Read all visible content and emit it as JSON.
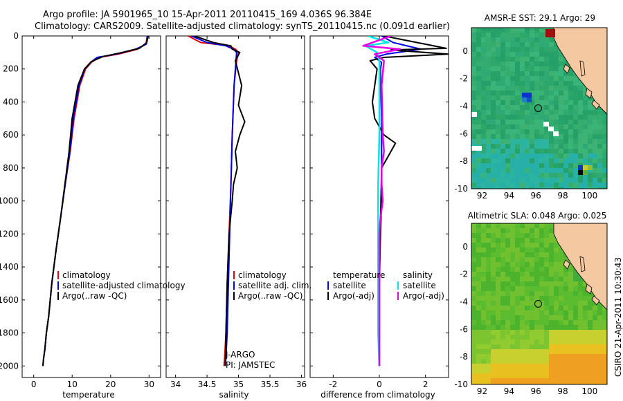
{
  "header": {
    "line1": "Argo profile: JA 5901965_10 15-Apr-2011 20110415_169 4.036S 96.384E",
    "line2": "Climatology: CARS2009. Satellite-adjusted climatology: synTS_20110415.nc (0.091d earlier)"
  },
  "side_label": "CSIRO 21-Apr-2011 10:30:43",
  "colors": {
    "red": "#e60000",
    "blue": "#0000e6",
    "black": "#000000",
    "cyan": "#00e6e6",
    "magenta": "#e600e6",
    "land": "#f4c8a0"
  },
  "chart_data": [
    {
      "type": "line",
      "id": "temperature",
      "xlabel": "temperature",
      "xlim": [
        -3,
        33
      ],
      "ylim": [
        2070,
        0
      ],
      "xticks": [
        "0",
        "10",
        "20",
        "30"
      ],
      "xtick_values": [
        0,
        10,
        20,
        30
      ],
      "yticks": [
        "0",
        "200",
        "400",
        "600",
        "800",
        "1000",
        "1200",
        "1400",
        "1600",
        "1800",
        "2000"
      ],
      "ytick_values": [
        0,
        200,
        400,
        600,
        800,
        1000,
        1200,
        1400,
        1600,
        1800,
        2000
      ],
      "legend": [
        "climatology",
        "satellite-adjusted climatology",
        "Argo(..raw -QC)"
      ],
      "series": [
        {
          "name": "climatology",
          "color": "red",
          "x": [
            29.5,
            29.2,
            27,
            22,
            17,
            15,
            13.5,
            12,
            10.5,
            9.5,
            8.2,
            7,
            5.8,
            4.7,
            3.9,
            3.3,
            2.9,
            2.6,
            2.4
          ],
          "y": [
            0,
            50,
            80,
            110,
            130,
            160,
            200,
            300,
            500,
            700,
            900,
            1100,
            1300,
            1500,
            1700,
            1800,
            1900,
            1950,
            2000
          ]
        },
        {
          "name": "satellite",
          "color": "blue",
          "x": [
            29.6,
            29.3,
            26.5,
            21.5,
            16.5,
            14.8,
            13.3,
            11.8,
            10.3,
            9.4,
            8.2,
            7,
            5.8,
            4.7,
            3.9,
            3.3,
            2.9,
            2.6,
            2.4
          ],
          "y": [
            0,
            50,
            80,
            110,
            130,
            160,
            200,
            300,
            500,
            700,
            900,
            1100,
            1300,
            1500,
            1700,
            1800,
            1900,
            1950,
            2000
          ]
        },
        {
          "name": "argo",
          "color": "black",
          "x": [
            29.8,
            29.4,
            27.5,
            23,
            18,
            15,
            13.2,
            11.5,
            10,
            9.2,
            8.1,
            7,
            5.8,
            4.7,
            3.9,
            3.3,
            2.9,
            2.6,
            2.4
          ],
          "y": [
            0,
            40,
            75,
            100,
            125,
            155,
            200,
            300,
            500,
            700,
            900,
            1100,
            1300,
            1500,
            1700,
            1800,
            1900,
            1950,
            2000
          ]
        }
      ]
    },
    {
      "type": "line",
      "id": "salinity",
      "xlabel": "salinity",
      "xlim": [
        33.85,
        36.05
      ],
      "ylim": [
        2070,
        0
      ],
      "xticks": [
        "34",
        "34.5",
        "35",
        "35.5",
        "36"
      ],
      "xtick_values": [
        34,
        34.5,
        35,
        35.5,
        36
      ],
      "legend": [
        "climatology",
        "satellite adj. clim.",
        "Argo(..raw -QC)"
      ],
      "series": [
        {
          "name": "climatology",
          "color": "red",
          "x": [
            34.2,
            34.4,
            34.85,
            34.95,
            35.0,
            34.97,
            34.93,
            34.9,
            34.88,
            34.85,
            34.82,
            34.8,
            34.78,
            34.77
          ],
          "y": [
            0,
            40,
            60,
            80,
            100,
            150,
            300,
            600,
            900,
            1200,
            1500,
            1800,
            1950,
            2000
          ]
        },
        {
          "name": "satellite",
          "color": "blue",
          "x": [
            34.25,
            34.5,
            34.8,
            34.92,
            34.97,
            34.96,
            34.93,
            34.9,
            34.88,
            34.86,
            34.84,
            34.82,
            34.8,
            34.79
          ],
          "y": [
            0,
            40,
            60,
            80,
            100,
            150,
            300,
            600,
            900,
            1200,
            1500,
            1800,
            1950,
            2000
          ]
        },
        {
          "name": "argo",
          "color": "black",
          "x": [
            34.3,
            34.6,
            34.88,
            34.9,
            35.02,
            34.95,
            35.05,
            35.0,
            35.1,
            35.02,
            34.95,
            34.98,
            34.92,
            34.9,
            34.85,
            34.82,
            34.8,
            34.79
          ],
          "y": [
            0,
            40,
            60,
            80,
            100,
            150,
            300,
            420,
            520,
            600,
            700,
            800,
            900,
            1000,
            1200,
            1500,
            1800,
            2000
          ]
        }
      ],
      "annotation": [
        "J-ARGO",
        "PI: JAMSTEC"
      ]
    },
    {
      "type": "line",
      "id": "difference",
      "xlabel": "difference from climatology",
      "xlim": [
        -3,
        3
      ],
      "ylim": [
        2070,
        0
      ],
      "xticks": [
        "-2",
        "0",
        "2"
      ],
      "xtick_values": [
        -2,
        0,
        2
      ],
      "legend_temperature": {
        "title": "temperature",
        "items": [
          "satellite",
          "Argo(-adj)"
        ]
      },
      "legend_salinity": {
        "title": "salinity",
        "items": [
          "satellite",
          "Argo(-adj)"
        ]
      },
      "series": [
        {
          "name": "temperature satellite",
          "color": "blue",
          "x": [
            0.1,
            0.6,
            1.8,
            0.3,
            -0.2,
            0.1,
            0.05,
            0.05,
            0.1,
            0.1,
            0.05,
            0.0,
            0.0,
            0.0,
            0.0
          ],
          "y": [
            0,
            40,
            80,
            110,
            130,
            160,
            200,
            300,
            500,
            800,
            1100,
            1400,
            1700,
            1900,
            2000
          ]
        },
        {
          "name": "temperature argo",
          "color": "black",
          "x": [
            0.2,
            2.9,
            0.5,
            3.0,
            0.2,
            -0.4,
            -0.1,
            -0.3,
            -0.2,
            0.2,
            0.7,
            0.5,
            0.1,
            0.1,
            0.05,
            0.0,
            0.0,
            0.0
          ],
          "y": [
            0,
            75,
            85,
            110,
            130,
            150,
            200,
            400,
            500,
            600,
            650,
            700,
            800,
            1000,
            1200,
            1500,
            1800,
            2000
          ]
        },
        {
          "name": "salinity satellite",
          "color": "cyan",
          "x": [
            -0.5,
            0.4,
            -0.6,
            -0.1,
            0.0,
            0.0,
            0.0,
            -0.05,
            -0.05,
            -0.05,
            -0.05,
            0.0
          ],
          "y": [
            0,
            40,
            60,
            100,
            150,
            300,
            600,
            900,
            1200,
            1500,
            1800,
            2000
          ]
        },
        {
          "name": "salinity argo",
          "color": "magenta",
          "x": [
            0.5,
            -0.7,
            0.9,
            -0.2,
            0.2,
            0.1,
            0.15,
            0.2,
            0.1,
            0.1,
            0.15,
            0.05,
            0.0,
            0.0,
            0.0,
            0.0
          ],
          "y": [
            0,
            60,
            80,
            110,
            150,
            300,
            600,
            700,
            800,
            900,
            1000,
            1100,
            1200,
            1500,
            1800,
            2000
          ]
        }
      ]
    },
    {
      "type": "heatmap",
      "id": "sst_map",
      "title": "AMSR-E SST: 29.1 Argo: 29",
      "xlim": [
        91.2,
        101.3
      ],
      "ylim": [
        -10,
        1.7
      ],
      "xticks": [
        "92",
        "94",
        "96",
        "98",
        "100"
      ],
      "xtick_values": [
        92,
        94,
        96,
        98,
        100
      ],
      "yticks": [
        "0",
        "-2",
        "-4",
        "-6",
        "-8",
        "-10"
      ],
      "ytick_values": [
        0,
        -2,
        -4,
        -6,
        -8,
        -10
      ],
      "argo_position": {
        "lon": 96.384,
        "lat": -4.036
      }
    },
    {
      "type": "heatmap",
      "id": "sla_map",
      "title": "Altimetric SLA: 0.048 Argo: 0.025",
      "xlim": [
        91.2,
        101.3
      ],
      "ylim": [
        -10,
        1.7
      ],
      "xticks": [
        "92",
        "94",
        "96",
        "98",
        "100"
      ],
      "xtick_values": [
        92,
        94,
        96,
        98,
        100
      ],
      "yticks": [
        "0",
        "-2",
        "-4",
        "-6",
        "-8",
        "-10"
      ],
      "ytick_values": [
        0,
        -2,
        -4,
        -6,
        -8,
        -10
      ],
      "argo_position": {
        "lon": 96.384,
        "lat": -4.036
      }
    }
  ]
}
